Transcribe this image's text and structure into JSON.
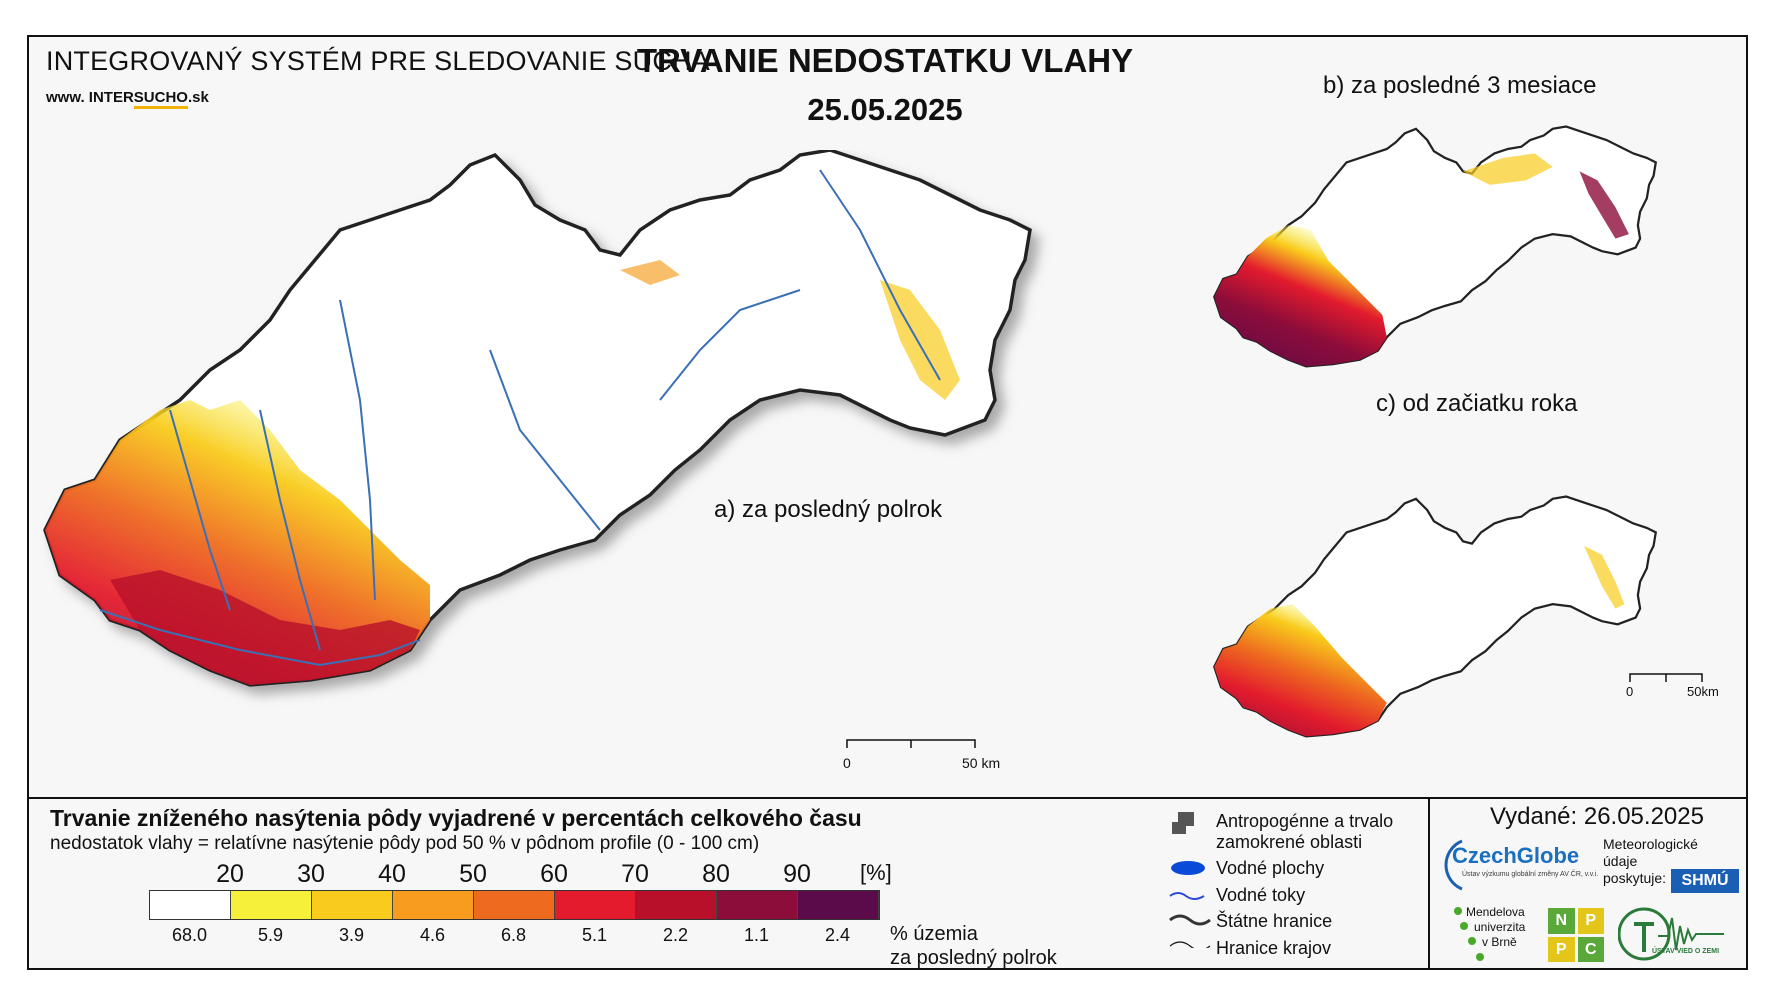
{
  "header": {
    "system_name": "INTEGROVANÝ SYSTÉM PRE SLEDOVANIE SUCHA",
    "url_prefix": "www. INTER",
    "url_brand": "SUCHO",
    "url_suffix": ".sk",
    "title": "TRVANIE NEDOSTATKU VLAHY",
    "date": "25.05.2025"
  },
  "panels": {
    "a_label": "a) za posledný polrok",
    "b_label": "b) za posledné 3 mesiace",
    "c_label": "c) od začiatku roka"
  },
  "scalebars": {
    "main_zero": "0",
    "main_end": "50 km",
    "small_zero": "0",
    "small_end": "50km"
  },
  "legend": {
    "title": "Trvanie zníženého nasýtenia pôdy vyjadrené v percentách celkového času",
    "subtitle": "nedostatok vlahy = relatívne nasýtenie pôdy pod 50 % v pôdnom profile (0 - 100 cm)",
    "unit": "[%]",
    "thresholds": [
      "20",
      "30",
      "40",
      "50",
      "60",
      "70",
      "80",
      "90"
    ],
    "colors": [
      "#ffffff",
      "#f7f03a",
      "#f9cb1c",
      "#f79c1f",
      "#ee6a1f",
      "#e31b2d",
      "#b8102a",
      "#8c0c3a",
      "#5b0a4a"
    ],
    "shares": [
      "68.0",
      "5.9",
      "3.9",
      "4.6",
      "6.8",
      "5.1",
      "2.2",
      "1.1",
      "2.4"
    ],
    "share_label_1": "% územia",
    "share_label_2": "za posledný polrok"
  },
  "map_legend": {
    "anthropogenic_1": "Antropogénne a trvalo",
    "anthropogenic_2": "zamokrené oblasti",
    "water_bodies": "Vodné plochy",
    "water_courses": "Vodné toky",
    "state_borders": "Štátne hranice",
    "region_borders": "Hranice krajov"
  },
  "issued": {
    "label": "Vydané: 26.05.2025"
  },
  "logos": {
    "czechglobe": "CzechGlobe",
    "czechglobe_sub": "Ústav výzkumu globální změny AV ČR, v.v.i.",
    "meteo_1": "Meteorologické",
    "meteo_2": "údaje",
    "meteo_3": "poskytuje:",
    "shmu": "SHMÚ",
    "mendel_1": "Mendelova",
    "mendel_2": "univerzita",
    "mendel_3": "v Brně",
    "nppc": [
      "N",
      "P",
      "P",
      "C"
    ],
    "uvz": "ÚSTAV VIED O ZEMI"
  }
}
